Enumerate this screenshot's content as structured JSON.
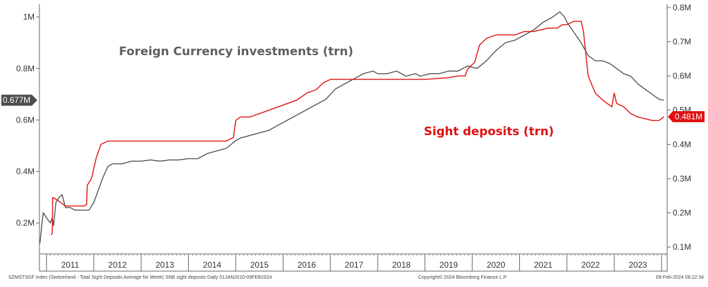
{
  "chart_data": {
    "type": "line",
    "title": "",
    "annotations": {
      "fc": "Foreign Currency investments (trn)",
      "sd": "Sight deposits (trn)"
    },
    "left_axis": {
      "ticks": [
        "0.2M",
        "0.4M",
        "0.6M",
        "0.8M",
        "1M"
      ],
      "tick_values": [
        0.2,
        0.4,
        0.6,
        0.8,
        1.0
      ],
      "ylim": [
        0.08,
        1.05
      ]
    },
    "right_axis": {
      "ticks": [
        "0.1M",
        "0.2M",
        "0.3M",
        "0.4M",
        "0.5M",
        "0.6M",
        "0.7M",
        "0.8M"
      ],
      "tick_values": [
        0.1,
        0.2,
        0.3,
        0.4,
        0.5,
        0.6,
        0.7,
        0.8
      ],
      "ylim": [
        0.08,
        0.81
      ]
    },
    "x_axis": {
      "labels": [
        "2011",
        "2012",
        "2013",
        "2014",
        "2015",
        "2016",
        "2017",
        "2018",
        "2019",
        "2020",
        "2021",
        "2022",
        "2023"
      ],
      "xlim": [
        2010.85,
        2024.12
      ]
    },
    "grid": false,
    "badges": {
      "fc": {
        "label": "0.677M",
        "value": 0.677,
        "color": "#4d4d4d"
      },
      "sd": {
        "label": "0.481M",
        "value": 0.481,
        "color": "#e01010"
      }
    },
    "series": [
      {
        "name": "Foreign Currency investments (trn)",
        "axis": "left",
        "color": "#555555",
        "points": [
          [
            2010.86,
            0.12
          ],
          [
            2010.9,
            0.19
          ],
          [
            2010.93,
            0.24
          ],
          [
            2011.0,
            0.22
          ],
          [
            2011.08,
            0.2
          ],
          [
            2011.12,
            0.22
          ],
          [
            2011.15,
            0.19
          ],
          [
            2011.2,
            0.28
          ],
          [
            2011.27,
            0.3
          ],
          [
            2011.33,
            0.31
          ],
          [
            2011.4,
            0.26
          ],
          [
            2011.5,
            0.26
          ],
          [
            2011.6,
            0.25
          ],
          [
            2011.75,
            0.25
          ],
          [
            2011.9,
            0.25
          ],
          [
            2012.0,
            0.28
          ],
          [
            2012.1,
            0.33
          ],
          [
            2012.2,
            0.38
          ],
          [
            2012.3,
            0.42
          ],
          [
            2012.4,
            0.43
          ],
          [
            2012.6,
            0.43
          ],
          [
            2012.8,
            0.44
          ],
          [
            2013.0,
            0.44
          ],
          [
            2013.2,
            0.445
          ],
          [
            2013.4,
            0.44
          ],
          [
            2013.6,
            0.445
          ],
          [
            2013.8,
            0.445
          ],
          [
            2014.0,
            0.45
          ],
          [
            2014.2,
            0.45
          ],
          [
            2014.4,
            0.47
          ],
          [
            2014.6,
            0.48
          ],
          [
            2014.8,
            0.49
          ],
          [
            2015.0,
            0.52
          ],
          [
            2015.1,
            0.53
          ],
          [
            2015.3,
            0.54
          ],
          [
            2015.5,
            0.55
          ],
          [
            2015.7,
            0.56
          ],
          [
            2015.9,
            0.58
          ],
          [
            2016.1,
            0.6
          ],
          [
            2016.3,
            0.62
          ],
          [
            2016.5,
            0.64
          ],
          [
            2016.7,
            0.66
          ],
          [
            2016.9,
            0.68
          ],
          [
            2017.1,
            0.72
          ],
          [
            2017.3,
            0.74
          ],
          [
            2017.5,
            0.76
          ],
          [
            2017.7,
            0.78
          ],
          [
            2017.9,
            0.79
          ],
          [
            2018.0,
            0.78
          ],
          [
            2018.2,
            0.78
          ],
          [
            2018.4,
            0.79
          ],
          [
            2018.6,
            0.77
          ],
          [
            2018.8,
            0.78
          ],
          [
            2018.9,
            0.77
          ],
          [
            2019.1,
            0.78
          ],
          [
            2019.3,
            0.78
          ],
          [
            2019.5,
            0.79
          ],
          [
            2019.7,
            0.79
          ],
          [
            2019.9,
            0.81
          ],
          [
            2020.1,
            0.8
          ],
          [
            2020.3,
            0.83
          ],
          [
            2020.5,
            0.87
          ],
          [
            2020.7,
            0.9
          ],
          [
            2020.9,
            0.91
          ],
          [
            2021.1,
            0.93
          ],
          [
            2021.3,
            0.95
          ],
          [
            2021.5,
            0.98
          ],
          [
            2021.7,
            1.0
          ],
          [
            2021.85,
            1.02
          ],
          [
            2021.95,
            1.0
          ],
          [
            2022.0,
            0.98
          ],
          [
            2022.15,
            0.94
          ],
          [
            2022.3,
            0.9
          ],
          [
            2022.45,
            0.85
          ],
          [
            2022.6,
            0.83
          ],
          [
            2022.75,
            0.83
          ],
          [
            2022.9,
            0.82
          ],
          [
            2023.05,
            0.8
          ],
          [
            2023.2,
            0.78
          ],
          [
            2023.35,
            0.77
          ],
          [
            2023.5,
            0.74
          ],
          [
            2023.65,
            0.72
          ],
          [
            2023.8,
            0.7
          ],
          [
            2023.95,
            0.68
          ],
          [
            2024.05,
            0.677
          ]
        ]
      },
      {
        "name": "Sight deposits (trn)",
        "axis": "right",
        "color": "#e01010",
        "points": [
          [
            2011.1,
            0.135
          ],
          [
            2011.12,
            0.14
          ],
          [
            2011.13,
            0.245
          ],
          [
            2011.2,
            0.24
          ],
          [
            2011.3,
            0.23
          ],
          [
            2011.4,
            0.22
          ],
          [
            2011.6,
            0.22
          ],
          [
            2011.8,
            0.22
          ],
          [
            2011.85,
            0.225
          ],
          [
            2011.86,
            0.28
          ],
          [
            2011.95,
            0.3
          ],
          [
            2012.05,
            0.36
          ],
          [
            2012.15,
            0.4
          ],
          [
            2012.3,
            0.41
          ],
          [
            2012.5,
            0.41
          ],
          [
            2012.8,
            0.41
          ],
          [
            2013.0,
            0.41
          ],
          [
            2013.5,
            0.41
          ],
          [
            2013.8,
            0.41
          ],
          [
            2014.0,
            0.41
          ],
          [
            2014.5,
            0.41
          ],
          [
            2014.8,
            0.41
          ],
          [
            2014.95,
            0.42
          ],
          [
            2015.0,
            0.47
          ],
          [
            2015.1,
            0.48
          ],
          [
            2015.3,
            0.48
          ],
          [
            2015.5,
            0.49
          ],
          [
            2015.7,
            0.5
          ],
          [
            2015.9,
            0.51
          ],
          [
            2016.1,
            0.52
          ],
          [
            2016.3,
            0.53
          ],
          [
            2016.5,
            0.55
          ],
          [
            2016.7,
            0.56
          ],
          [
            2016.85,
            0.58
          ],
          [
            2017.0,
            0.59
          ],
          [
            2017.2,
            0.59
          ],
          [
            2017.5,
            0.59
          ],
          [
            2017.8,
            0.59
          ],
          [
            2018.0,
            0.59
          ],
          [
            2018.5,
            0.59
          ],
          [
            2019.0,
            0.59
          ],
          [
            2019.5,
            0.595
          ],
          [
            2019.7,
            0.6
          ],
          [
            2019.8,
            0.6
          ],
          [
            2019.85,
            0.6
          ],
          [
            2019.9,
            0.62
          ],
          [
            2020.05,
            0.64
          ],
          [
            2020.15,
            0.69
          ],
          [
            2020.3,
            0.71
          ],
          [
            2020.5,
            0.72
          ],
          [
            2020.7,
            0.72
          ],
          [
            2020.9,
            0.72
          ],
          [
            2021.1,
            0.73
          ],
          [
            2021.3,
            0.73
          ],
          [
            2021.6,
            0.74
          ],
          [
            2021.8,
            0.74
          ],
          [
            2021.9,
            0.75
          ],
          [
            2022.0,
            0.75
          ],
          [
            2022.15,
            0.76
          ],
          [
            2022.3,
            0.76
          ],
          [
            2022.35,
            0.73
          ],
          [
            2022.45,
            0.6
          ],
          [
            2022.6,
            0.55
          ],
          [
            2022.75,
            0.53
          ],
          [
            2022.85,
            0.52
          ],
          [
            2022.95,
            0.51
          ],
          [
            2023.0,
            0.55
          ],
          [
            2023.05,
            0.52
          ],
          [
            2023.2,
            0.51
          ],
          [
            2023.35,
            0.49
          ],
          [
            2023.5,
            0.48
          ],
          [
            2023.65,
            0.475
          ],
          [
            2023.8,
            0.47
          ],
          [
            2023.95,
            0.47
          ],
          [
            2024.05,
            0.481
          ]
        ]
      }
    ]
  },
  "footer": {
    "left": "SZMSTSDF Index (Switzerland - Total Sight Deposits Average for Week) SNB sight deposits  Daily 01JAN2010-09FEB2024",
    "center": "Copyright© 2024 Bloomberg Finance L.P.",
    "right": "09-Feb-2024 08:22:34"
  }
}
